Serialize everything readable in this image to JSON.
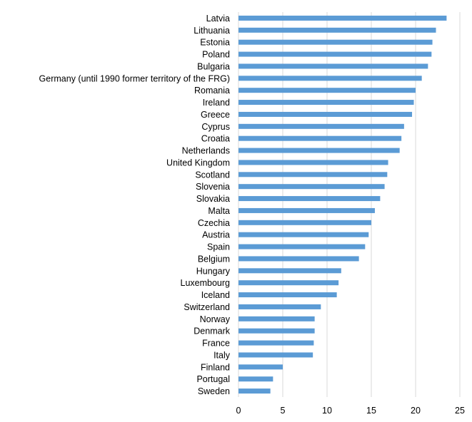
{
  "chart_data": {
    "type": "bar",
    "orientation": "horizontal",
    "categories": [
      "Latvia",
      "Lithuania",
      "Estonia",
      "Poland",
      "Bulgaria",
      "Germany (until 1990 former territory of the FRG)",
      "Romania",
      "Ireland",
      "Greece",
      "Cyprus",
      "Croatia",
      "Netherlands",
      "United Kingdom",
      "Scotland",
      "Slovenia",
      "Slovakia",
      "Malta",
      "Czechia",
      "Austria",
      "Spain",
      "Belgium",
      "Hungary",
      "Luxembourg",
      "Iceland",
      "Switzerland",
      "Norway",
      "Denmark",
      "France",
      "Italy",
      "Finland",
      "Portugal",
      "Sweden"
    ],
    "values": [
      23.5,
      22.3,
      21.9,
      21.8,
      21.4,
      20.7,
      20.0,
      19.8,
      19.6,
      18.7,
      18.4,
      18.2,
      16.9,
      16.8,
      16.5,
      16.0,
      15.4,
      15.0,
      14.7,
      14.3,
      13.6,
      11.6,
      11.3,
      11.1,
      9.3,
      8.6,
      8.6,
      8.5,
      8.4,
      5.0,
      3.9,
      3.6
    ],
    "xlim": [
      0,
      25
    ],
    "xticks": [
      "0",
      "5",
      "10",
      "15",
      "20",
      "25"
    ],
    "title": "",
    "xlabel": "",
    "ylabel": "",
    "grid": true,
    "legend": "none",
    "bar_color": "#5b9bd5",
    "grid_color": "#d9d9d9"
  }
}
